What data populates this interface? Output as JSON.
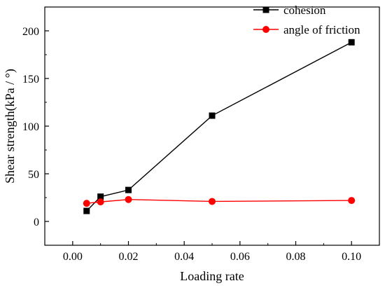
{
  "chart_data": {
    "type": "line",
    "title": "",
    "xlabel": "Loading rate",
    "ylabel": "Shear strength(kPa / °)",
    "xlim": [
      -0.01,
      0.11
    ],
    "ylim": [
      -25,
      225
    ],
    "xticks": [
      0.0,
      0.02,
      0.04,
      0.06,
      0.08,
      0.1
    ],
    "xtick_labels": [
      "0.00",
      "0.02",
      "0.04",
      "0.06",
      "0.08",
      "0.10"
    ],
    "yticks": [
      0,
      50,
      100,
      150,
      200
    ],
    "ytick_labels": [
      "0",
      "50",
      "100",
      "150",
      "200"
    ],
    "grid": false,
    "legend_position": "top-right",
    "series": [
      {
        "name": "cohesion",
        "color": "#000000",
        "marker": "square",
        "x": [
          0.005,
          0.01,
          0.02,
          0.05,
          0.1
        ],
        "y": [
          11,
          26,
          33,
          111,
          188
        ]
      },
      {
        "name": "angle of friction",
        "color": "#ff0000",
        "marker": "circle",
        "x": [
          0.005,
          0.01,
          0.02,
          0.05,
          0.1
        ],
        "y": [
          19,
          20.5,
          23,
          21,
          22
        ]
      }
    ]
  }
}
